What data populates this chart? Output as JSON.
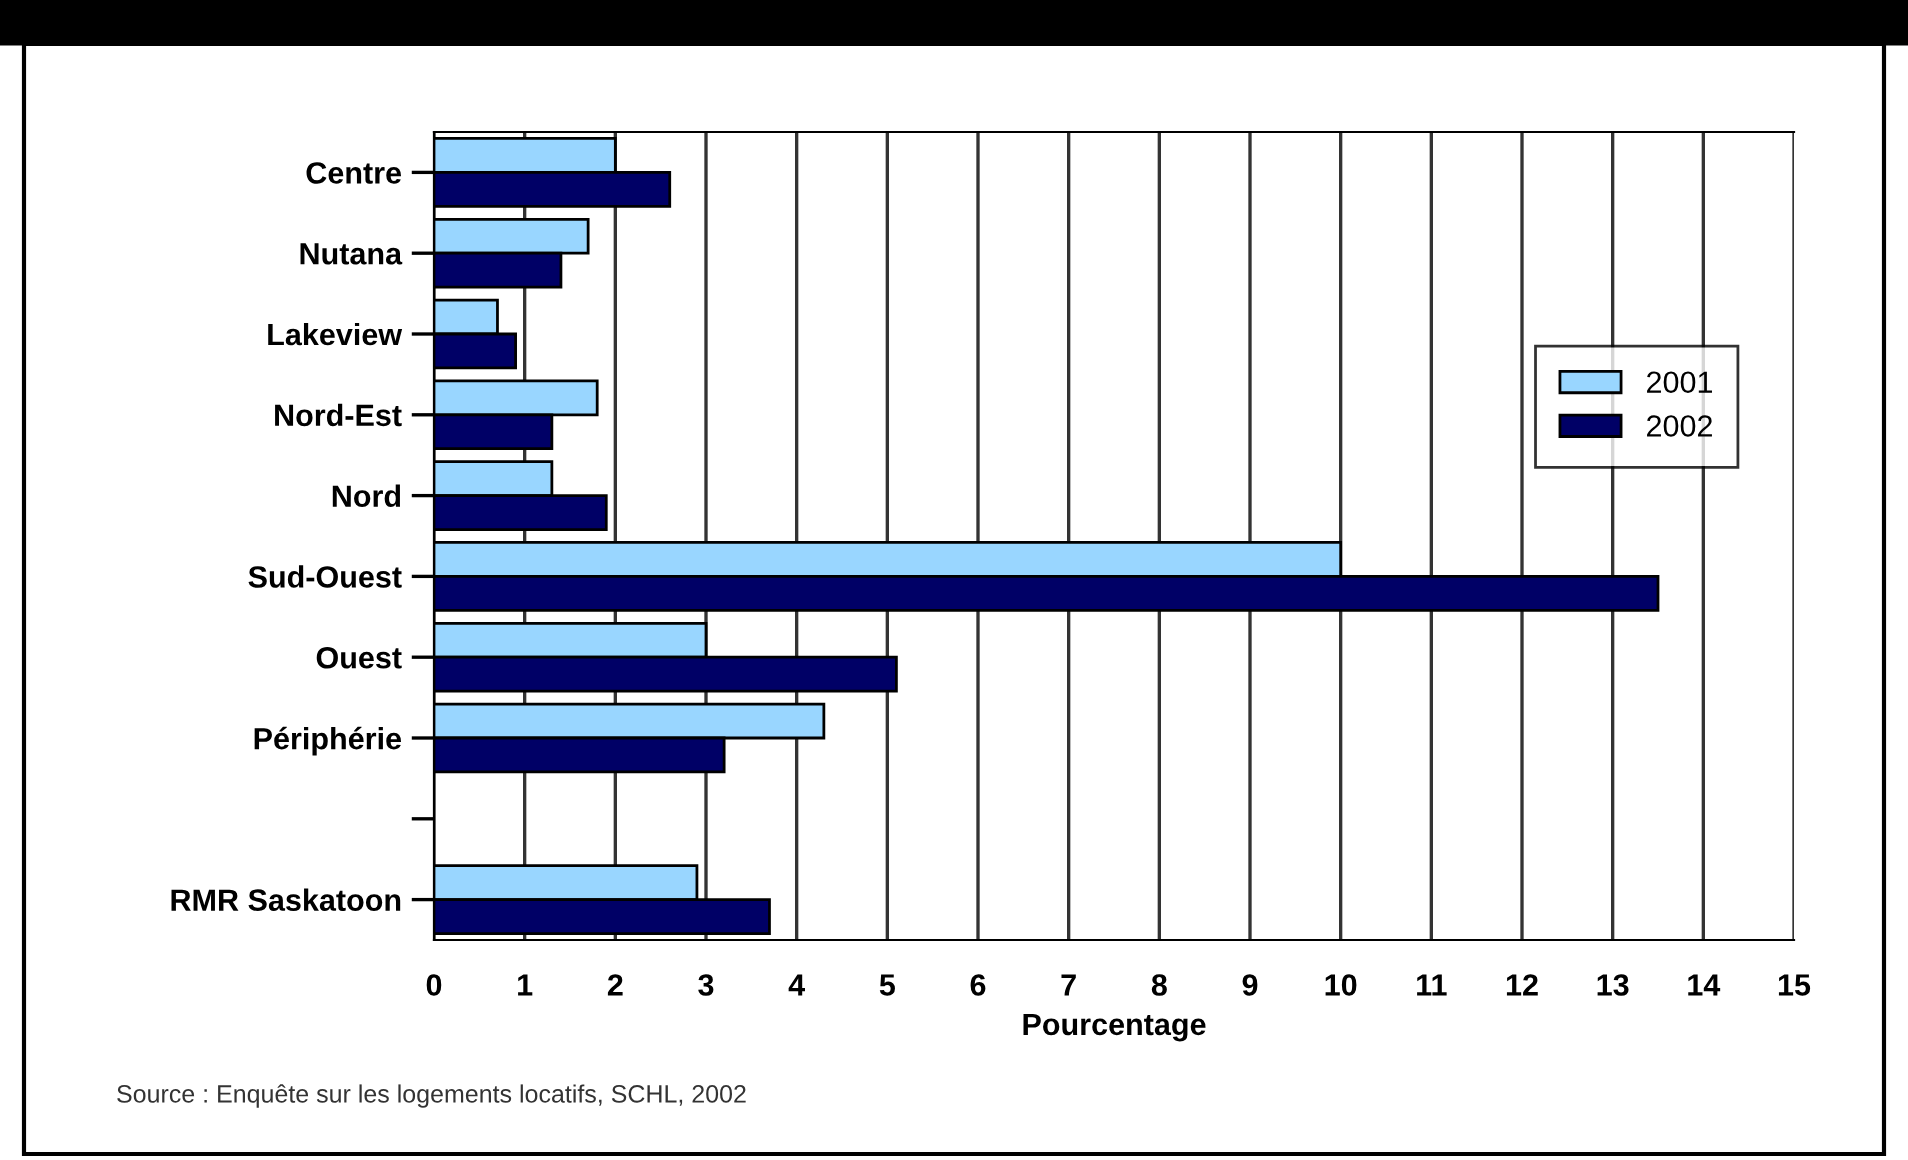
{
  "chart_data": {
    "type": "bar",
    "orientation": "horizontal",
    "xlabel": "Pourcentage",
    "categories": [
      "Centre",
      "Nutana",
      "Lakeview",
      "Nord-Est",
      "Nord",
      "Sud-Ouest",
      "Ouest",
      "Périphérie",
      null,
      "RMR Saskatoon"
    ],
    "series": [
      {
        "name": "2001",
        "color": "#99d6ff",
        "values": [
          2.0,
          1.7,
          0.7,
          1.8,
          1.3,
          10.0,
          3.0,
          4.3,
          null,
          2.9
        ]
      },
      {
        "name": "2002",
        "color": "#000066",
        "values": [
          2.6,
          1.4,
          0.9,
          1.3,
          1.9,
          13.5,
          5.1,
          3.2,
          null,
          3.7
        ]
      }
    ],
    "xlim": [
      0,
      15
    ],
    "xticks": [
      0,
      1,
      2,
      3,
      4,
      5,
      6,
      7,
      8,
      9,
      10,
      11,
      12,
      13,
      14,
      15
    ],
    "grid": "x",
    "legend": "right",
    "annotations": [
      "Source : Enquête sur les logements locatifs, SCHL, 2002"
    ]
  }
}
